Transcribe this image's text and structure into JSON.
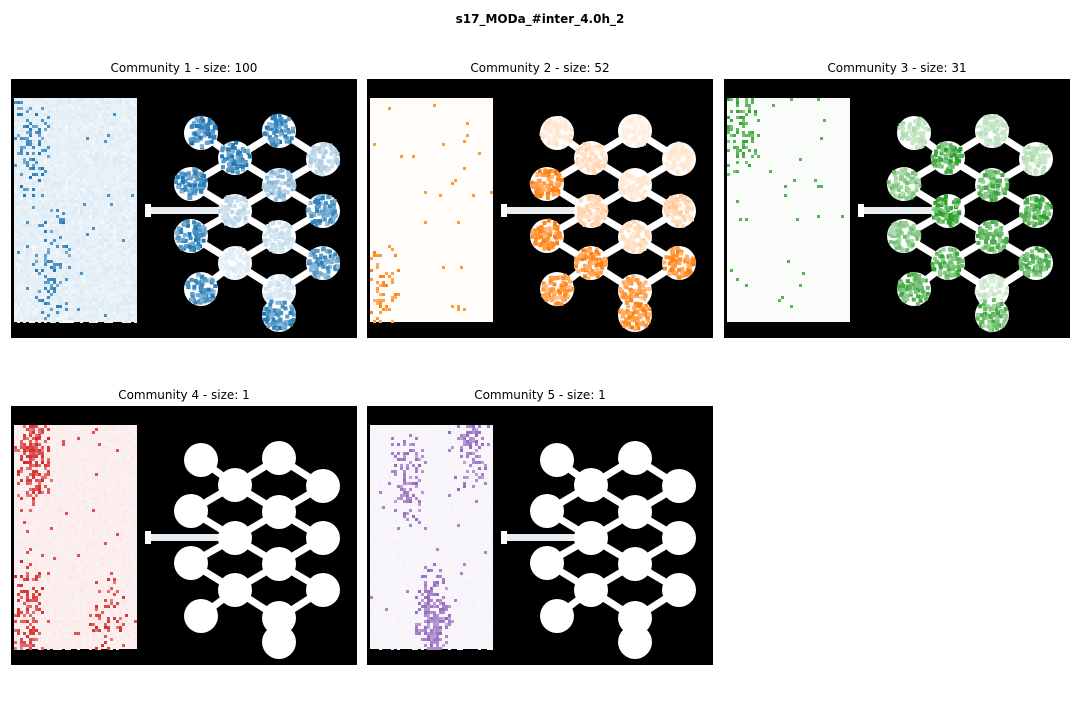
{
  "title": "s17_MODa_#inter_4.0h_2",
  "chart_data": [
    {
      "type": "heatmap",
      "title": "Community 1 - size: 100",
      "community": 1,
      "size": 100,
      "color": "#1f77b4",
      "chamber_intensity": 0.18,
      "hotspots": [
        [
          0.12,
          0.2,
          0.5
        ],
        [
          0.3,
          0.75,
          0.4
        ]
      ],
      "wells": [
        0.95,
        0.9,
        0.95,
        0.35,
        0.9,
        0.5,
        0.3,
        0.85,
        0.9,
        0.25,
        0.15,
        0.85,
        0.9,
        0.2,
        0.9
      ],
      "grid": false,
      "axes": "off"
    },
    {
      "type": "heatmap",
      "title": "Community 2 - size: 52",
      "community": 2,
      "size": 52,
      "color": "#ff7f0e",
      "chamber_intensity": 0.04,
      "hotspots": [
        [
          0.1,
          0.9,
          0.3
        ]
      ],
      "wells": [
        0.2,
        0.15,
        0.3,
        0.2,
        0.95,
        0.2,
        0.35,
        0.4,
        0.95,
        0.3,
        0.95,
        0.95,
        0.85,
        0.8,
        0.95
      ],
      "grid": false,
      "axes": "off"
    },
    {
      "type": "heatmap",
      "title": "Community 3 - size: 31",
      "community": 3,
      "size": 31,
      "color": "#2ca02c",
      "chamber_intensity": 0.05,
      "hotspots": [
        [
          0.1,
          0.1,
          0.6
        ]
      ],
      "wells": [
        0.35,
        0.3,
        0.95,
        0.35,
        0.6,
        0.85,
        1.0,
        0.9,
        0.6,
        0.8,
        0.85,
        0.85,
        0.85,
        0.25,
        0.8
      ],
      "grid": false,
      "axes": "off"
    },
    {
      "type": "heatmap",
      "title": "Community 4 - size: 1",
      "community": 4,
      "size": 1,
      "color": "#d62728",
      "chamber_intensity": 0.12,
      "hotspots": [
        [
          0.15,
          0.12,
          1.0
        ],
        [
          0.1,
          0.85,
          0.6
        ],
        [
          0.75,
          0.9,
          0.4
        ]
      ],
      "wells": [
        0,
        0,
        0,
        0,
        0,
        0,
        0,
        0,
        0,
        0,
        0,
        0,
        0,
        0,
        0
      ],
      "grid": false,
      "axes": "off"
    },
    {
      "type": "heatmap",
      "title": "Community 5 - size: 1",
      "community": 5,
      "size": 1,
      "color": "#9467bd",
      "chamber_intensity": 0.1,
      "hotspots": [
        [
          0.5,
          0.9,
          1.0
        ],
        [
          0.3,
          0.2,
          0.5
        ],
        [
          0.8,
          0.05,
          0.5
        ]
      ],
      "wells": [
        0,
        0,
        0,
        0,
        0,
        0,
        0,
        0,
        0,
        0,
        0,
        0,
        0,
        0,
        0
      ],
      "grid": false,
      "axes": "off"
    }
  ]
}
